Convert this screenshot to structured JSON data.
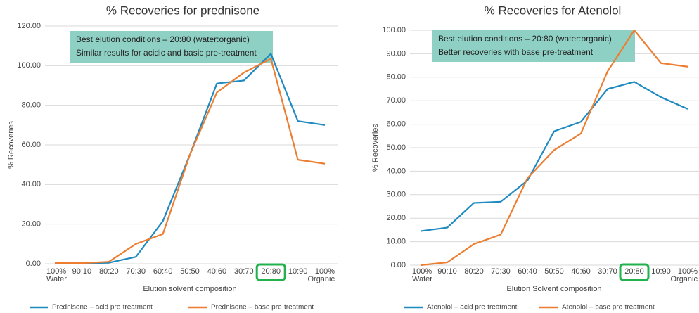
{
  "chart_data": [
    {
      "type": "line",
      "title": "% Recoveries for prednisone",
      "x_label": "Elution solvent composition",
      "y_label": "% Recoveries",
      "categories": [
        "100% Water",
        "90:10",
        "80:20",
        "70:30",
        "60:40",
        "50:50",
        "40:60",
        "30:70",
        "20:80",
        "10:90",
        "100% Organic"
      ],
      "series": [
        {
          "name": "Prednisone – acid pre-treatment",
          "color": "#1f8ac0",
          "values": [
            0.2,
            0.2,
            0.5,
            3.5,
            21.5,
            55,
            91,
            92.5,
            106,
            72,
            70
          ]
        },
        {
          "name": "Prednisone – base pre-treatment",
          "color": "#ed7d31",
          "values": [
            0.3,
            0.3,
            1,
            10,
            15,
            55,
            86.5,
            96.5,
            103.5,
            52.5,
            50.5
          ]
        }
      ],
      "ylim": [
        0,
        120
      ],
      "yticks": [
        {
          "value": 0,
          "label": "0.00"
        },
        {
          "value": 20,
          "label": "20.00"
        },
        {
          "value": 40,
          "label": "40.00"
        },
        {
          "value": 60,
          "label": "60.00"
        },
        {
          "value": 80,
          "label": "80.00"
        },
        {
          "value": 100,
          "label": "100.00"
        },
        {
          "value": 120,
          "label": "120.00"
        }
      ],
      "grid": true,
      "annotations": [
        "Best elution conditions – 20:80 (water:organic)",
        "Similar results for acidic and basic pre-treatment"
      ]
    },
    {
      "type": "line",
      "title": "% Recoveries for Atenolol",
      "x_label": "Elution Solvent composition",
      "y_label": "% Recoveries",
      "categories": [
        "100% Water",
        "90:10",
        "80:20",
        "70:30",
        "60:40",
        "50:50",
        "40:60",
        "30:70",
        "20:80",
        "10:90",
        "100% Organic"
      ],
      "series": [
        {
          "name": "Atenolol – acid pre-treatment",
          "color": "#1f8ac0",
          "values": [
            14.5,
            16,
            26.5,
            27,
            36,
            57,
            61,
            75,
            78,
            71.5,
            66.5
          ]
        },
        {
          "name": "Atenolol – base pre-treatment",
          "color": "#ed7d31",
          "values": [
            0,
            1.2,
            9,
            13,
            37,
            49,
            56,
            82.5,
            100,
            86,
            84.5
          ]
        }
      ],
      "ylim": [
        0,
        100
      ],
      "yticks": [
        {
          "value": 0,
          "label": "0.00"
        },
        {
          "value": 10,
          "label": "10.00"
        },
        {
          "value": 20,
          "label": "20.00"
        },
        {
          "value": 30,
          "label": "30.00"
        },
        {
          "value": 40,
          "label": "40.00"
        },
        {
          "value": 50,
          "label": "50.00"
        },
        {
          "value": 60,
          "label": "60.00"
        },
        {
          "value": 70,
          "label": "70.00"
        },
        {
          "value": 80,
          "label": "80.00"
        },
        {
          "value": 90,
          "label": "90.00"
        },
        {
          "value": 100,
          "label": "100.00"
        }
      ],
      "grid": true,
      "annotations": [
        "Best elution conditions – 20:80 (water:organic)",
        "Better recoveries with base pre-treatment"
      ]
    }
  ]
}
